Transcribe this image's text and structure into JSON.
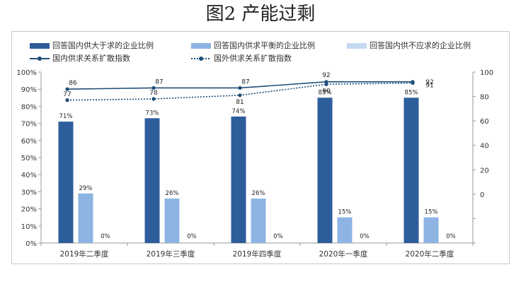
{
  "title": "图2  产能过剩",
  "colors": {
    "bar_dark": "#2e5d9b",
    "bar_mid": "#8db4e2",
    "bar_light": "#c5d9f1",
    "line_dark": "#1f4e79",
    "axis": "#9a9a9a"
  },
  "legend": [
    "回答国内供大于求的企业比例",
    "回答国内供求平衡的企业比例",
    "回答国内供不应求的企业比例",
    "国内供求关系扩散指数",
    "国外供求关系扩散指数"
  ],
  "chart_data": {
    "type": "bar",
    "categories": [
      "2019年二季度",
      "2019年三季度",
      "2019年四季度",
      "2020年一季度",
      "2020年二季度"
    ],
    "series": [
      {
        "name": "回答国内供大于求的企业比例",
        "type": "bar",
        "axis": "left",
        "values": [
          71,
          73,
          74,
          85,
          85
        ],
        "labels": [
          "71%",
          "73%",
          "74%",
          "85%",
          "85%"
        ]
      },
      {
        "name": "回答国内供求平衡的企业比例",
        "type": "bar",
        "axis": "left",
        "values": [
          29,
          26,
          26,
          15,
          15
        ],
        "labels": [
          "29%",
          "26%",
          "26%",
          "15%",
          "15%"
        ]
      },
      {
        "name": "回答国内供不应求的企业比例",
        "type": "bar",
        "axis": "left",
        "values": [
          0,
          0,
          0,
          0,
          0
        ],
        "labels": [
          "0%",
          "0%",
          "0%",
          "0%",
          "0%"
        ]
      },
      {
        "name": "国内供求关系扩散指数",
        "type": "line",
        "style": "solid",
        "axis": "right",
        "values": [
          86,
          87,
          87,
          92,
          92
        ],
        "labels": [
          "86",
          "87",
          "87",
          "92",
          "92"
        ]
      },
      {
        "name": "国外供求关系扩散指数",
        "type": "line",
        "style": "dotted",
        "axis": "right",
        "values": [
          77,
          78,
          81,
          90,
          91
        ],
        "labels": [
          "77",
          "78",
          "81",
          "90",
          "91"
        ]
      }
    ],
    "y_left": {
      "min": 0,
      "max": 100,
      "ticks": [
        "0%",
        "10%",
        "20%",
        "30%",
        "40%",
        "50%",
        "60%",
        "70%",
        "80%",
        "90%",
        "100%"
      ]
    },
    "y_right": {
      "min": -40,
      "max": 100,
      "ticks": [
        "0",
        "20",
        "40",
        "60",
        "80",
        "100"
      ]
    },
    "grid": false,
    "legend_position": "top"
  }
}
